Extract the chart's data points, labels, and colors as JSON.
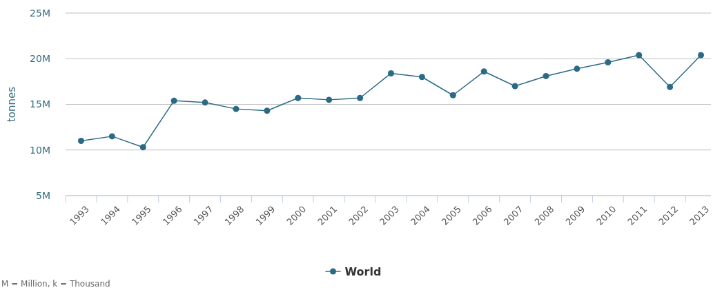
{
  "chart_data": {
    "type": "line",
    "ylabel": "tonnes",
    "categories": [
      "1993",
      "1994",
      "1995",
      "1996",
      "1997",
      "1998",
      "1999",
      "2000",
      "2001",
      "2002",
      "2003",
      "2004",
      "2005",
      "2006",
      "2007",
      "2008",
      "2009",
      "2010",
      "2011",
      "2012",
      "2013"
    ],
    "series": [
      {
        "name": "World",
        "color": "#2b6a87",
        "values": [
          11000000,
          11500000,
          10300000,
          15400000,
          15200000,
          14500000,
          14300000,
          15700000,
          15500000,
          15700000,
          18400000,
          18000000,
          16000000,
          18600000,
          17000000,
          18100000,
          18900000,
          19600000,
          20400000,
          16900000,
          20400000
        ]
      }
    ],
    "ylim": [
      5000000,
      25000000
    ],
    "yticks": [
      {
        "value": 5000000,
        "label": "5M"
      },
      {
        "value": 10000000,
        "label": "10M"
      },
      {
        "value": 15000000,
        "label": "15M"
      },
      {
        "value": 20000000,
        "label": "20M"
      },
      {
        "value": 25000000,
        "label": "25M"
      }
    ],
    "grid": "y",
    "legend": "bottom",
    "marker": "circle",
    "annotations": [
      "M = Million, k = Thousand"
    ]
  }
}
